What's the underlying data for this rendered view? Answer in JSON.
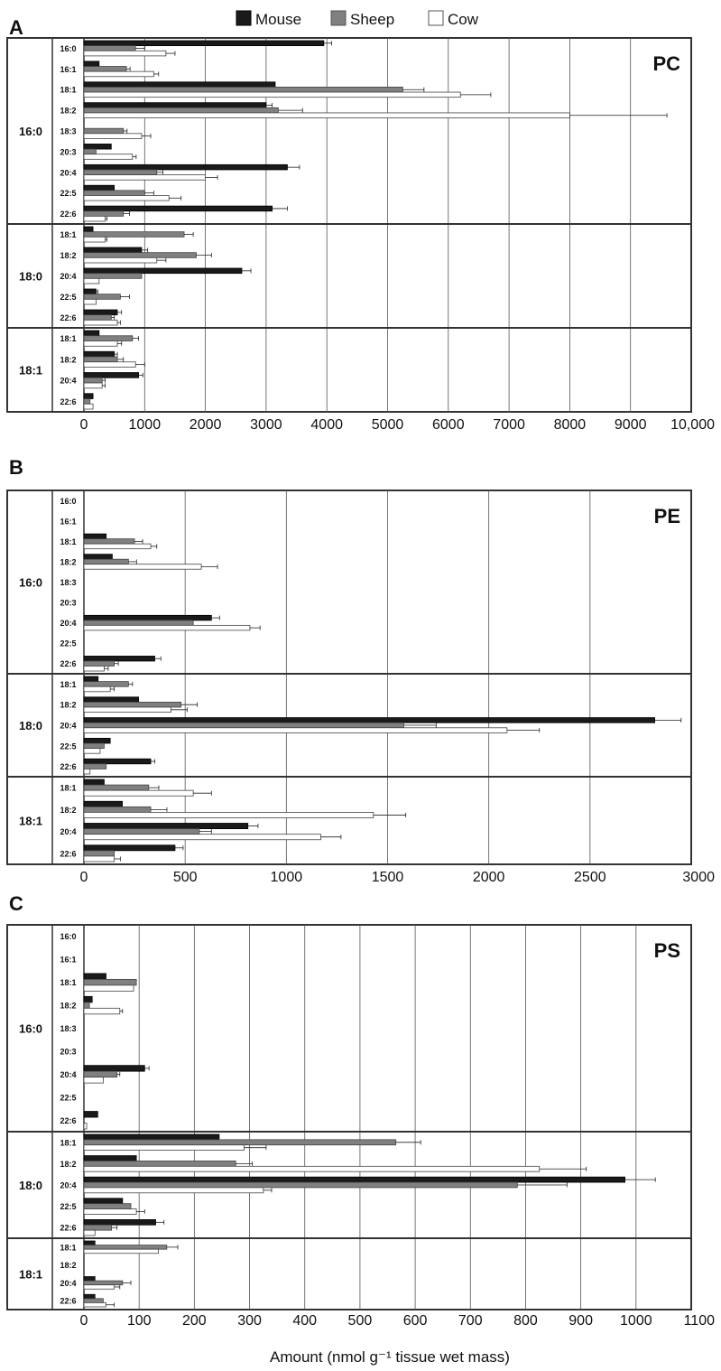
{
  "legend": [
    {
      "name": "Mouse",
      "color": "#1a1a1a"
    },
    {
      "name": "Sheep",
      "color": "#808080"
    },
    {
      "name": "Cow",
      "color": "#ffffff"
    }
  ],
  "xlabel": "Amount (nmol g⁻¹ tissue wet mass)",
  "chart_data": [
    {
      "panel": "A",
      "type": "bar",
      "orientation": "horizontal",
      "class_label": "PC",
      "xlim": [
        0,
        10000
      ],
      "ticks": [
        0,
        1000,
        2000,
        3000,
        4000,
        5000,
        6000,
        7000,
        8000,
        9000,
        10000
      ],
      "tick_labels": [
        "0",
        "1000",
        "2000",
        "3000",
        "4000",
        "5000",
        "6000",
        "7000",
        "8000",
        "9000",
        "10,000"
      ],
      "groups": [
        {
          "label": "16:0",
          "rows": [
            {
              "label": "16:0",
              "mouse": 3950,
              "sheep": 850,
              "cow": 1350,
              "mouse_err": 130,
              "sheep_err": 150,
              "cow_err": 150
            },
            {
              "label": "16:1",
              "mouse": 250,
              "sheep": 700,
              "cow": 1150,
              "mouse_err": 0,
              "sheep_err": 60,
              "cow_err": 80
            },
            {
              "label": "18:1",
              "mouse": 3150,
              "sheep": 5250,
              "cow": 6200,
              "mouse_err": 0,
              "sheep_err": 350,
              "cow_err": 500
            },
            {
              "label": "18:2",
              "mouse": 3000,
              "sheep": 3200,
              "cow": 8000,
              "mouse_err": 100,
              "sheep_err": 400,
              "cow_err": 1600
            },
            {
              "label": "18:3",
              "mouse": 0,
              "sheep": 650,
              "cow": 950,
              "mouse_err": 0,
              "sheep_err": 60,
              "cow_err": 150
            },
            {
              "label": "20:3",
              "mouse": 450,
              "sheep": 200,
              "cow": 800,
              "mouse_err": 0,
              "sheep_err": 0,
              "cow_err": 60
            },
            {
              "label": "20:4",
              "mouse": 3350,
              "sheep": 1200,
              "cow": 2000,
              "mouse_err": 200,
              "sheep_err": 100,
              "cow_err": 200
            },
            {
              "label": "22:5",
              "mouse": 500,
              "sheep": 1000,
              "cow": 1400,
              "mouse_err": 0,
              "sheep_err": 150,
              "cow_err": 200
            },
            {
              "label": "22:6",
              "mouse": 3100,
              "sheep": 650,
              "cow": 350,
              "mouse_err": 250,
              "sheep_err": 100,
              "cow_err": 30
            }
          ]
        },
        {
          "label": "18:0",
          "rows": [
            {
              "label": "18:1",
              "mouse": 150,
              "sheep": 1650,
              "cow": 350,
              "mouse_err": 0,
              "sheep_err": 150,
              "cow_err": 30
            },
            {
              "label": "18:2",
              "mouse": 950,
              "sheep": 1850,
              "cow": 1200,
              "mouse_err": 100,
              "sheep_err": 250,
              "cow_err": 150
            },
            {
              "label": "20:4",
              "mouse": 2600,
              "sheep": 950,
              "cow": 250,
              "mouse_err": 150,
              "sheep_err": 0,
              "cow_err": 0
            },
            {
              "label": "22:5",
              "mouse": 200,
              "sheep": 600,
              "cow": 200,
              "mouse_err": 30,
              "sheep_err": 150,
              "cow_err": 0
            },
            {
              "label": "22:6",
              "mouse": 550,
              "sheep": 450,
              "cow": 550,
              "mouse_err": 70,
              "sheep_err": 50,
              "cow_err": 50
            }
          ]
        },
        {
          "label": "18:1",
          "rows": [
            {
              "label": "18:1",
              "mouse": 250,
              "sheep": 800,
              "cow": 550,
              "mouse_err": 0,
              "sheep_err": 100,
              "cow_err": 70
            },
            {
              "label": "18:2",
              "mouse": 500,
              "sheep": 550,
              "cow": 850,
              "mouse_err": 50,
              "sheep_err": 100,
              "cow_err": 150
            },
            {
              "label": "20:4",
              "mouse": 900,
              "sheep": 300,
              "cow": 300,
              "mouse_err": 70,
              "sheep_err": 50,
              "cow_err": 50
            },
            {
              "label": "22:6",
              "mouse": 150,
              "sheep": 100,
              "cow": 150,
              "mouse_err": 0,
              "sheep_err": 0,
              "cow_err": 0
            }
          ]
        }
      ]
    },
    {
      "panel": "B",
      "type": "bar",
      "orientation": "horizontal",
      "class_label": "PE",
      "xlim": [
        0,
        3000
      ],
      "ticks": [
        0,
        500,
        1000,
        1500,
        2000,
        2500,
        3000
      ],
      "tick_labels": [
        "0",
        "500",
        "1000",
        "1500",
        "2000",
        "2500",
        "3000"
      ],
      "groups": [
        {
          "label": "16:0",
          "rows": [
            {
              "label": "16:0",
              "mouse": 0,
              "sheep": 0,
              "cow": 0,
              "mouse_err": 0,
              "sheep_err": 0,
              "cow_err": 0
            },
            {
              "label": "16:1",
              "mouse": 0,
              "sheep": 0,
              "cow": 0,
              "mouse_err": 0,
              "sheep_err": 0,
              "cow_err": 0
            },
            {
              "label": "18:1",
              "mouse": 110,
              "sheep": 250,
              "cow": 330,
              "mouse_err": 0,
              "sheep_err": 40,
              "cow_err": 30
            },
            {
              "label": "18:2",
              "mouse": 140,
              "sheep": 220,
              "cow": 580,
              "mouse_err": 0,
              "sheep_err": 40,
              "cow_err": 80
            },
            {
              "label": "18:3",
              "mouse": 0,
              "sheep": 0,
              "cow": 0,
              "mouse_err": 0,
              "sheep_err": 0,
              "cow_err": 0
            },
            {
              "label": "20:3",
              "mouse": 0,
              "sheep": 0,
              "cow": 0,
              "mouse_err": 0,
              "sheep_err": 0,
              "cow_err": 0
            },
            {
              "label": "20:4",
              "mouse": 630,
              "sheep": 540,
              "cow": 820,
              "mouse_err": 40,
              "sheep_err": 0,
              "cow_err": 50
            },
            {
              "label": "22:5",
              "mouse": 0,
              "sheep": 0,
              "cow": 0,
              "mouse_err": 0,
              "sheep_err": 0,
              "cow_err": 0
            },
            {
              "label": "22:6",
              "mouse": 350,
              "sheep": 150,
              "cow": 100,
              "mouse_err": 30,
              "sheep_err": 20,
              "cow_err": 20
            }
          ]
        },
        {
          "label": "18:0",
          "rows": [
            {
              "label": "18:1",
              "mouse": 70,
              "sheep": 220,
              "cow": 130,
              "mouse_err": 0,
              "sheep_err": 20,
              "cow_err": 20
            },
            {
              "label": "18:2",
              "mouse": 270,
              "sheep": 480,
              "cow": 430,
              "mouse_err": 0,
              "sheep_err": 80,
              "cow_err": 80
            },
            {
              "label": "20:4",
              "mouse": 2820,
              "sheep": 1580,
              "cow": 2090,
              "mouse_err": 130,
              "sheep_err": 160,
              "cow_err": 160
            },
            {
              "label": "22:5",
              "mouse": 130,
              "sheep": 100,
              "cow": 80,
              "mouse_err": 0,
              "sheep_err": 0,
              "cow_err": 0
            },
            {
              "label": "22:6",
              "mouse": 330,
              "sheep": 110,
              "cow": 30,
              "mouse_err": 20,
              "sheep_err": 0,
              "cow_err": 0
            }
          ]
        },
        {
          "label": "18:1",
          "rows": [
            {
              "label": "18:1",
              "mouse": 100,
              "sheep": 320,
              "cow": 540,
              "mouse_err": 0,
              "sheep_err": 50,
              "cow_err": 90
            },
            {
              "label": "18:2",
              "mouse": 190,
              "sheep": 330,
              "cow": 1430,
              "mouse_err": 0,
              "sheep_err": 80,
              "cow_err": 160
            },
            {
              "label": "20:4",
              "mouse": 810,
              "sheep": 570,
              "cow": 1170,
              "mouse_err": 50,
              "sheep_err": 60,
              "cow_err": 100
            },
            {
              "label": "22:6",
              "mouse": 450,
              "sheep": 150,
              "cow": 150,
              "mouse_err": 40,
              "sheep_err": 0,
              "cow_err": 30
            }
          ]
        }
      ]
    },
    {
      "panel": "C",
      "type": "bar",
      "orientation": "horizontal",
      "class_label": "PS",
      "xlim": [
        0,
        1100
      ],
      "ticks": [
        0,
        100,
        200,
        300,
        400,
        500,
        600,
        700,
        800,
        900,
        1000,
        1100
      ],
      "tick_labels": [
        "0",
        "100",
        "200",
        "300",
        "400",
        "500",
        "600",
        "700",
        "800",
        "900",
        "1000",
        "1100"
      ],
      "groups": [
        {
          "label": "16:0",
          "rows": [
            {
              "label": "16:0",
              "mouse": 0,
              "sheep": 0,
              "cow": 0,
              "mouse_err": 0,
              "sheep_err": 0,
              "cow_err": 0
            },
            {
              "label": "16:1",
              "mouse": 0,
              "sheep": 0,
              "cow": 0,
              "mouse_err": 0,
              "sheep_err": 0,
              "cow_err": 0
            },
            {
              "label": "18:1",
              "mouse": 40,
              "sheep": 95,
              "cow": 90,
              "mouse_err": 0,
              "sheep_err": 0,
              "cow_err": 0
            },
            {
              "label": "18:2",
              "mouse": 15,
              "sheep": 10,
              "cow": 65,
              "mouse_err": 0,
              "sheep_err": 0,
              "cow_err": 5
            },
            {
              "label": "18:3",
              "mouse": 0,
              "sheep": 0,
              "cow": 0,
              "mouse_err": 0,
              "sheep_err": 0,
              "cow_err": 0
            },
            {
              "label": "20:3",
              "mouse": 0,
              "sheep": 0,
              "cow": 0,
              "mouse_err": 0,
              "sheep_err": 0,
              "cow_err": 0
            },
            {
              "label": "20:4",
              "mouse": 110,
              "sheep": 60,
              "cow": 35,
              "mouse_err": 8,
              "sheep_err": 5,
              "cow_err": 0
            },
            {
              "label": "22:5",
              "mouse": 0,
              "sheep": 0,
              "cow": 0,
              "mouse_err": 0,
              "sheep_err": 0,
              "cow_err": 0
            },
            {
              "label": "22:6",
              "mouse": 25,
              "sheep": 0,
              "cow": 5,
              "mouse_err": 0,
              "sheep_err": 0,
              "cow_err": 0
            }
          ]
        },
        {
          "label": "18:0",
          "rows": [
            {
              "label": "18:1",
              "mouse": 245,
              "sheep": 565,
              "cow": 290,
              "mouse_err": 0,
              "sheep_err": 45,
              "cow_err": 40
            },
            {
              "label": "18:2",
              "mouse": 95,
              "sheep": 275,
              "cow": 825,
              "mouse_err": 0,
              "sheep_err": 30,
              "cow_err": 85
            },
            {
              "label": "20:4",
              "mouse": 980,
              "sheep": 785,
              "cow": 325,
              "mouse_err": 55,
              "sheep_err": 90,
              "cow_err": 15
            },
            {
              "label": "22:5",
              "mouse": 70,
              "sheep": 85,
              "cow": 95,
              "mouse_err": 0,
              "sheep_err": 0,
              "cow_err": 15
            },
            {
              "label": "22:6",
              "mouse": 130,
              "sheep": 50,
              "cow": 20,
              "mouse_err": 15,
              "sheep_err": 10,
              "cow_err": 0
            }
          ]
        },
        {
          "label": "18:1",
          "rows": [
            {
              "label": "18:1",
              "mouse": 20,
              "sheep": 150,
              "cow": 135,
              "mouse_err": 0,
              "sheep_err": 20,
              "cow_err": 0
            },
            {
              "label": "18:2",
              "mouse": 0,
              "sheep": 0,
              "cow": 0,
              "mouse_err": 0,
              "sheep_err": 0,
              "cow_err": 0
            },
            {
              "label": "20:4",
              "mouse": 20,
              "sheep": 70,
              "cow": 55,
              "mouse_err": 0,
              "sheep_err": 15,
              "cow_err": 10
            },
            {
              "label": "22:6",
              "mouse": 20,
              "sheep": 35,
              "cow": 40,
              "mouse_err": 0,
              "sheep_err": 0,
              "cow_err": 15
            }
          ]
        }
      ]
    }
  ]
}
